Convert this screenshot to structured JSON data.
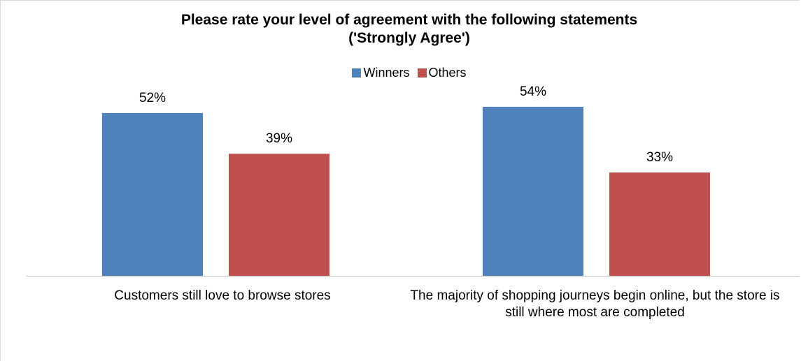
{
  "chart_data": {
    "type": "bar",
    "title": "Please rate your level of agreement with the following statements",
    "subtitle": "('Strongly Agree')",
    "categories": [
      "Customers still love to browse stores",
      "The majority of shopping journeys begin online, but the store is still where most are completed"
    ],
    "series": [
      {
        "name": "Winners",
        "values": [
          52,
          54
        ],
        "labels": [
          "52%",
          "54%"
        ],
        "color": "#4f81bd"
      },
      {
        "name": "Others",
        "values": [
          39,
          33
        ],
        "labels": [
          "39%",
          "33%"
        ],
        "color": "#c0504d"
      }
    ],
    "ylim": [
      0,
      58
    ],
    "grid": false,
    "legend": "top-center",
    "xlabel": "",
    "ylabel": ""
  }
}
